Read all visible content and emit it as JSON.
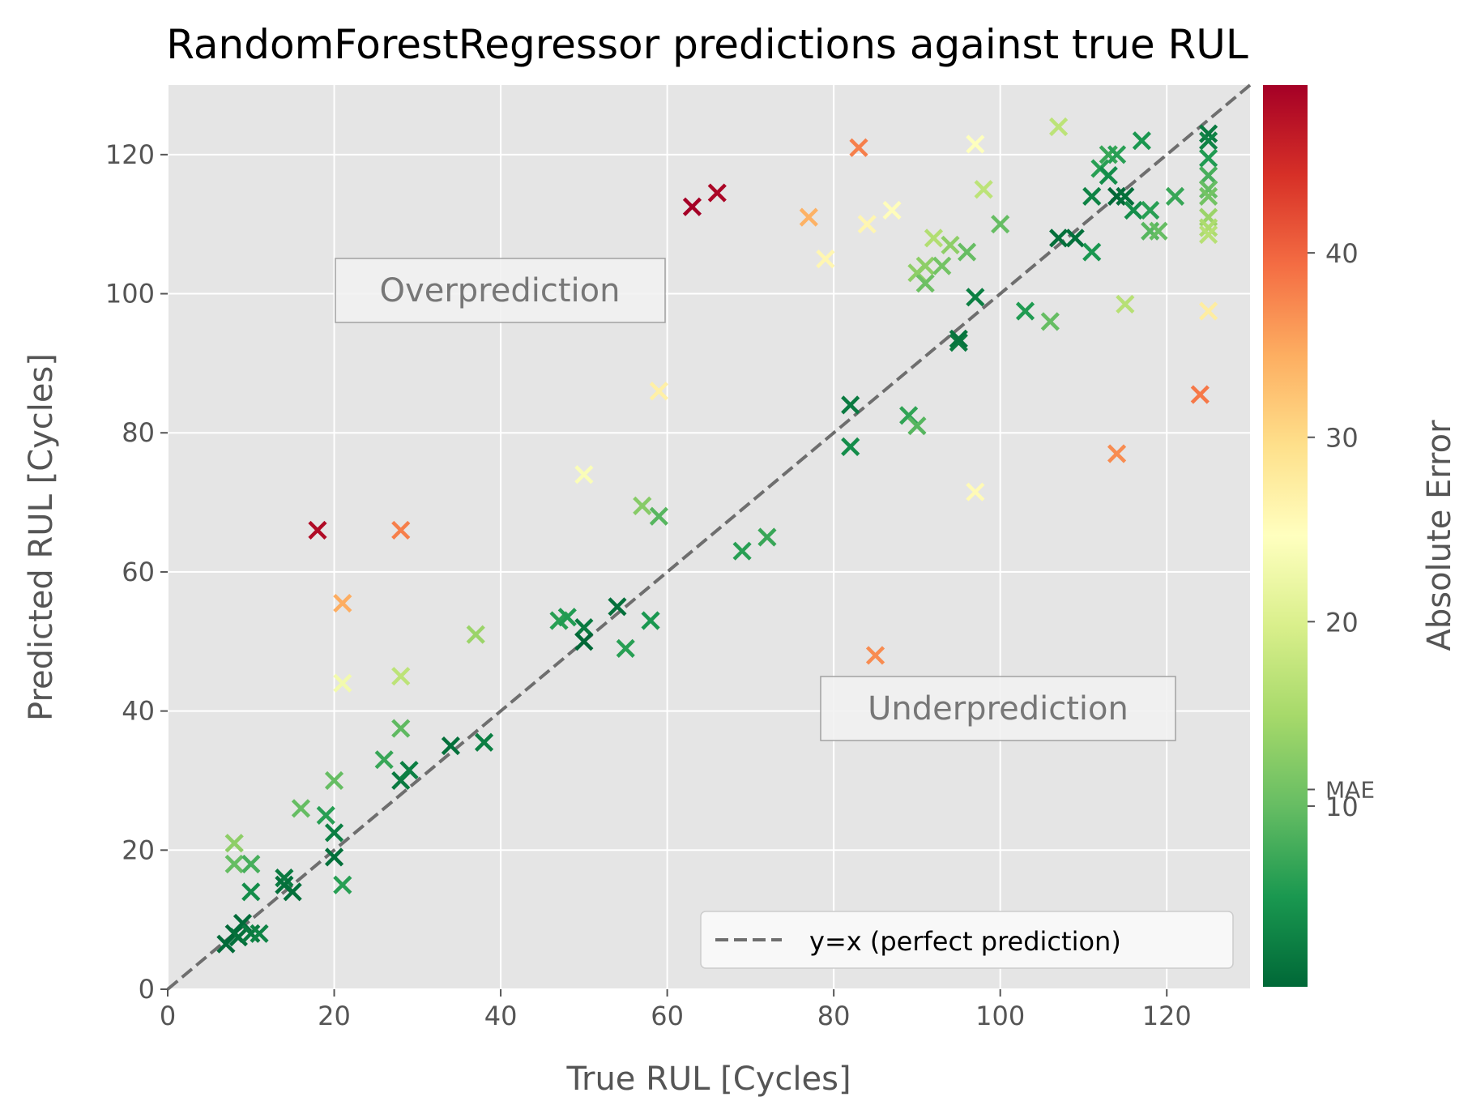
{
  "chart_data": {
    "type": "scatter",
    "title": "RandomForestRegressor predictions against true RUL",
    "xlabel": "True RUL [Cycles]",
    "ylabel": "Predicted RUL [Cycles]",
    "xlim": [
      0,
      130
    ],
    "ylim": [
      0,
      130
    ],
    "x_ticks": [
      0,
      20,
      40,
      60,
      80,
      100,
      120
    ],
    "y_ticks": [
      0,
      20,
      40,
      60,
      80,
      100,
      120
    ],
    "grid": true,
    "marker": "x",
    "reference_line": {
      "label": "y=x (perfect prediction)",
      "style": "dashed",
      "color": "#6e6e6e"
    },
    "legend_position": "lower-right",
    "annotations": [
      "Overprediction",
      "Underprediction"
    ],
    "colorbar": {
      "label": "Absolute Error",
      "colormap": "RdYlGn_r",
      "range": [
        0.2,
        49.1
      ],
      "ticks": [
        10,
        20,
        30,
        40
      ],
      "mae_tick": {
        "label": "MAE",
        "value": 10.9
      }
    },
    "points": [
      [
        7,
        6.5
      ],
      [
        8,
        8
      ],
      [
        8.5,
        7.5
      ],
      [
        9,
        9.5
      ],
      [
        10,
        8
      ],
      [
        11,
        8
      ],
      [
        8,
        21
      ],
      [
        8,
        18
      ],
      [
        10,
        18
      ],
      [
        10,
        14
      ],
      [
        14,
        16
      ],
      [
        15,
        14
      ],
      [
        14,
        15
      ],
      [
        16,
        26
      ],
      [
        19,
        25
      ],
      [
        20,
        22.5
      ],
      [
        20,
        19
      ],
      [
        20,
        30
      ],
      [
        21,
        15
      ],
      [
        18,
        66
      ],
      [
        21,
        55.5
      ],
      [
        21,
        44
      ],
      [
        26,
        33
      ],
      [
        28,
        30
      ],
      [
        29,
        31.5
      ],
      [
        28,
        37.5
      ],
      [
        28,
        45
      ],
      [
        28,
        66
      ],
      [
        34,
        35
      ],
      [
        38,
        35.5
      ],
      [
        37,
        51
      ],
      [
        47,
        53
      ],
      [
        48,
        53.5
      ],
      [
        50,
        52
      ],
      [
        50,
        50
      ],
      [
        54,
        55
      ],
      [
        55,
        49
      ],
      [
        58,
        53
      ],
      [
        50,
        74
      ],
      [
        57,
        69.5
      ],
      [
        59,
        68
      ],
      [
        59,
        86
      ],
      [
        63,
        112.5
      ],
      [
        66,
        114.5
      ],
      [
        69,
        63
      ],
      [
        72,
        65
      ],
      [
        77,
        111
      ],
      [
        79,
        105
      ],
      [
        83,
        121
      ],
      [
        84,
        110
      ],
      [
        87,
        112
      ],
      [
        82,
        84
      ],
      [
        82,
        78
      ],
      [
        89,
        82.5
      ],
      [
        90,
        81
      ],
      [
        85,
        48
      ],
      [
        90,
        103
      ],
      [
        91,
        101.5
      ],
      [
        91,
        104
      ],
      [
        93,
        104
      ],
      [
        92,
        108
      ],
      [
        94,
        107
      ],
      [
        96,
        106
      ],
      [
        97,
        121.5
      ],
      [
        97,
        99.5
      ],
      [
        95,
        93
      ],
      [
        95,
        93.5
      ],
      [
        97,
        71.5
      ],
      [
        98,
        115
      ],
      [
        100,
        110
      ],
      [
        103,
        97.5
      ],
      [
        106,
        96
      ],
      [
        107,
        124
      ],
      [
        107,
        108
      ],
      [
        109,
        108
      ],
      [
        111,
        114
      ],
      [
        111,
        106
      ],
      [
        112,
        118
      ],
      [
        113,
        120
      ],
      [
        113,
        117
      ],
      [
        114,
        120
      ],
      [
        114,
        114
      ],
      [
        115,
        114
      ],
      [
        116,
        112
      ],
      [
        115,
        98.5
      ],
      [
        114,
        77
      ],
      [
        117,
        122
      ],
      [
        118,
        112
      ],
      [
        118,
        109
      ],
      [
        119,
        109
      ],
      [
        121,
        114
      ],
      [
        124,
        85.5
      ],
      [
        125,
        123
      ],
      [
        125,
        122
      ],
      [
        125,
        119.5
      ],
      [
        125,
        117
      ],
      [
        125,
        115
      ],
      [
        125,
        114
      ],
      [
        125,
        111
      ],
      [
        125,
        109.5
      ],
      [
        125,
        108.5
      ],
      [
        125,
        97.5
      ]
    ]
  }
}
